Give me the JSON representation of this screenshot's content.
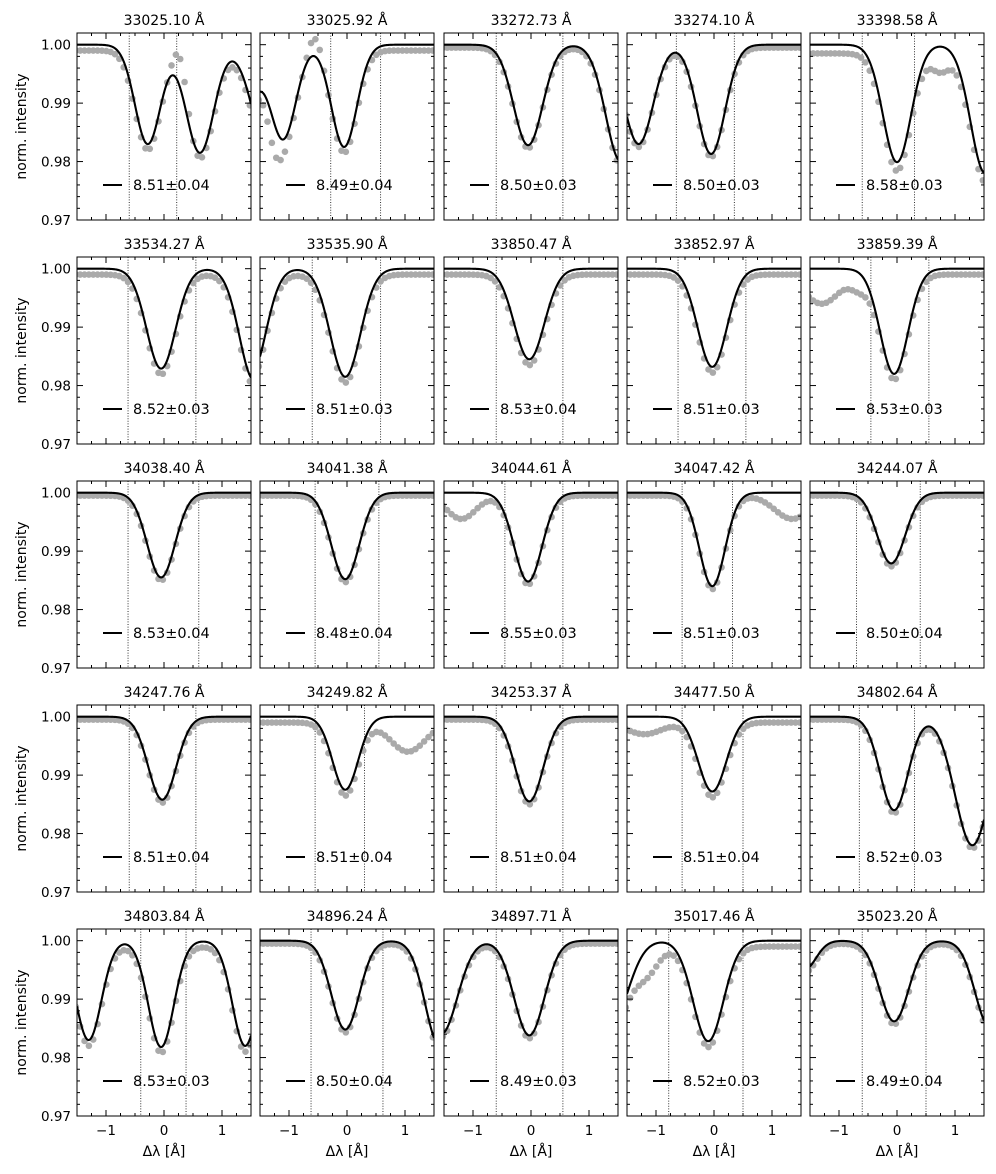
{
  "figure": {
    "ylabel": "norm. intensity",
    "xlabel": "Δλ [Å]",
    "xlim": [
      -1.5,
      1.5
    ],
    "ylim": [
      0.97,
      1.002
    ],
    "xticks_labeled": [
      -1,
      0,
      1
    ],
    "yticks_labeled": [
      0.97,
      0.98,
      0.99,
      1.0
    ],
    "ytick_labels": [
      "0.97",
      "0.98",
      "0.99",
      "1.00"
    ],
    "observed_color": "#aaaaaa",
    "fit_color": "#000000",
    "window_line_style": "dotted",
    "grid": false
  },
  "chart_data": [
    {
      "type": "line",
      "title": "33025.10 Å",
      "abundance": "8.51±0.04",
      "window": [
        -0.6,
        0.22
      ],
      "lines": [
        {
          "c": -0.28,
          "d": 0.017,
          "w": 0.22
        },
        {
          "c": 0.62,
          "d": 0.0185,
          "w": 0.24
        },
        {
          "c": 1.85,
          "d": 0.02,
          "w": 0.3
        }
      ],
      "obs_baseline": 0.999,
      "obs_bumps": [
        {
          "c": 0.28,
          "d": -0.006,
          "w": 0.12
        }
      ]
    },
    {
      "type": "line",
      "title": "33025.92 Å",
      "abundance": "8.49±0.04",
      "window": [
        -0.28,
        0.58
      ],
      "lines": [
        {
          "c": -1.1,
          "d": 0.016,
          "w": 0.22
        },
        {
          "c": -0.05,
          "d": 0.0175,
          "w": 0.22
        },
        {
          "c": -2.0,
          "d": 0.02,
          "w": 0.3
        }
      ],
      "obs_baseline": 0.999,
      "obs_bumps": [
        {
          "c": -1.25,
          "d": 0.004,
          "w": 0.12
        },
        {
          "c": -0.55,
          "d": -0.004,
          "w": 0.12
        }
      ]
    },
    {
      "type": "line",
      "title": "33272.73 Å",
      "abundance": "8.50±0.03",
      "window": [
        -0.6,
        0.55
      ],
      "lines": [
        {
          "c": -0.05,
          "d": 0.0172,
          "w": 0.25
        },
        {
          "c": 1.55,
          "d": 0.02,
          "w": 0.26
        }
      ],
      "obs_baseline": 0.9995,
      "obs_bumps": []
    },
    {
      "type": "line",
      "title": "33274.10 Å",
      "abundance": "8.50±0.03",
      "window": [
        -0.65,
        0.35
      ],
      "lines": [
        {
          "c": -1.3,
          "d": 0.017,
          "w": 0.25
        },
        {
          "c": -0.05,
          "d": 0.0187,
          "w": 0.24
        }
      ],
      "obs_baseline": 0.9995,
      "obs_bumps": []
    },
    {
      "type": "line",
      "title": "33398.58 Å",
      "abundance": "8.58±0.03",
      "window": [
        -0.6,
        0.3
      ],
      "lines": [
        {
          "c": 0.0,
          "d": 0.0201,
          "w": 0.24
        },
        {
          "c": 1.52,
          "d": 0.022,
          "w": 0.25
        }
      ],
      "obs_baseline": 0.9985,
      "obs_bumps": [
        {
          "c": 0.75,
          "d": 0.003,
          "w": 0.15
        }
      ]
    },
    {
      "type": "line",
      "title": "33534.27 Å",
      "abundance": "8.52±0.03",
      "window": [
        -0.62,
        0.55
      ],
      "lines": [
        {
          "c": -0.05,
          "d": 0.0171,
          "w": 0.25
        },
        {
          "c": 1.55,
          "d": 0.019,
          "w": 0.25
        }
      ],
      "obs_baseline": 0.999,
      "obs_bumps": []
    },
    {
      "type": "line",
      "title": "33535.90 Å",
      "abundance": "8.51±0.03",
      "window": [
        -0.6,
        0.58
      ],
      "lines": [
        {
          "c": -0.03,
          "d": 0.0185,
          "w": 0.26
        },
        {
          "c": -1.65,
          "d": 0.018,
          "w": 0.25
        }
      ],
      "obs_baseline": 0.999,
      "obs_bumps": []
    },
    {
      "type": "line",
      "title": "33850.47 Å",
      "abundance": "8.53±0.04",
      "window": [
        -0.6,
        0.55
      ],
      "lines": [
        {
          "c": -0.03,
          "d": 0.0155,
          "w": 0.26
        }
      ],
      "obs_baseline": 0.999,
      "obs_bumps": []
    },
    {
      "type": "line",
      "title": "33852.97 Å",
      "abundance": "8.51±0.03",
      "window": [
        -0.62,
        0.55
      ],
      "lines": [
        {
          "c": -0.03,
          "d": 0.0168,
          "w": 0.25
        }
      ],
      "obs_baseline": 0.999,
      "obs_bumps": []
    },
    {
      "type": "line",
      "title": "33859.39 Å",
      "abundance": "8.53±0.03",
      "window": [
        -0.45,
        0.55
      ],
      "lines": [
        {
          "c": -0.05,
          "d": 0.018,
          "w": 0.24
        }
      ],
      "obs_baseline": 0.999,
      "obs_bumps": [
        {
          "c": -1.3,
          "d": 0.005,
          "w": 0.3
        },
        {
          "c": -0.65,
          "d": 0.002,
          "w": 0.15
        }
      ]
    },
    {
      "type": "line",
      "title": "34038.40 Å",
      "abundance": "8.53±0.04",
      "window": [
        -0.62,
        0.6
      ],
      "lines": [
        {
          "c": -0.05,
          "d": 0.0145,
          "w": 0.24
        }
      ],
      "obs_baseline": 0.9995,
      "obs_bumps": []
    },
    {
      "type": "line",
      "title": "34041.38 Å",
      "abundance": "8.48±0.04",
      "window": [
        -0.55,
        0.55
      ],
      "lines": [
        {
          "c": -0.03,
          "d": 0.0148,
          "w": 0.24
        }
      ],
      "obs_baseline": 0.9995,
      "obs_bumps": []
    },
    {
      "type": "line",
      "title": "34044.61 Å",
      "abundance": "8.55±0.03",
      "window": [
        -0.45,
        0.55
      ],
      "lines": [
        {
          "c": -0.05,
          "d": 0.0152,
          "w": 0.24
        }
      ],
      "obs_baseline": 0.9995,
      "obs_bumps": [
        {
          "c": -1.2,
          "d": 0.004,
          "w": 0.25
        }
      ]
    },
    {
      "type": "line",
      "title": "34047.42 Å",
      "abundance": "8.51±0.03",
      "window": [
        -0.55,
        0.32
      ],
      "lines": [
        {
          "c": -0.03,
          "d": 0.016,
          "w": 0.22
        }
      ],
      "obs_baseline": 0.9995,
      "obs_bumps": [
        {
          "c": 1.35,
          "d": 0.004,
          "w": 0.3
        }
      ]
    },
    {
      "type": "line",
      "title": "34244.07 Å",
      "abundance": "8.50±0.04",
      "window": [
        -0.7,
        0.4
      ],
      "lines": [
        {
          "c": -0.1,
          "d": 0.0121,
          "w": 0.24
        }
      ],
      "obs_baseline": 0.9995,
      "obs_bumps": []
    },
    {
      "type": "line",
      "title": "34247.76 Å",
      "abundance": "8.51±0.04",
      "window": [
        -0.6,
        0.55
      ],
      "lines": [
        {
          "c": -0.03,
          "d": 0.0142,
          "w": 0.24
        }
      ],
      "obs_baseline": 0.9995,
      "obs_bumps": []
    },
    {
      "type": "line",
      "title": "34249.82 Å",
      "abundance": "8.51±0.04",
      "window": [
        -0.55,
        0.3
      ],
      "lines": [
        {
          "c": -0.03,
          "d": 0.0125,
          "w": 0.22
        }
      ],
      "obs_baseline": 0.999,
      "obs_bumps": [
        {
          "c": 1.05,
          "d": 0.005,
          "w": 0.3
        }
      ]
    },
    {
      "type": "line",
      "title": "34253.37 Å",
      "abundance": "8.51±0.04",
      "window": [
        -0.6,
        0.55
      ],
      "lines": [
        {
          "c": -0.03,
          "d": 0.0145,
          "w": 0.24
        }
      ],
      "obs_baseline": 0.9995,
      "obs_bumps": []
    },
    {
      "type": "line",
      "title": "34477.50 Å",
      "abundance": "8.51±0.04",
      "window": [
        -0.55,
        0.5
      ],
      "lines": [
        {
          "c": -0.03,
          "d": 0.0128,
          "w": 0.24
        }
      ],
      "obs_baseline": 0.999,
      "obs_bumps": [
        {
          "c": -1.2,
          "d": 0.002,
          "w": 0.3
        }
      ]
    },
    {
      "type": "line",
      "title": "34802.64 Å",
      "abundance": "8.52±0.03",
      "window": [
        -0.65,
        0.3
      ],
      "lines": [
        {
          "c": -0.05,
          "d": 0.016,
          "w": 0.24
        },
        {
          "c": 1.3,
          "d": 0.022,
          "w": 0.3
        }
      ],
      "obs_baseline": 0.9995,
      "obs_bumps": []
    },
    {
      "type": "line",
      "title": "34803.84 Å",
      "abundance": "8.53±0.03",
      "window": [
        -0.4,
        0.38
      ],
      "lines": [
        {
          "c": -1.3,
          "d": 0.017,
          "w": 0.22
        },
        {
          "c": -0.05,
          "d": 0.0182,
          "w": 0.22
        },
        {
          "c": 1.4,
          "d": 0.018,
          "w": 0.22
        }
      ],
      "obs_baseline": 0.999,
      "obs_bumps": []
    },
    {
      "type": "line",
      "title": "34896.24 Å",
      "abundance": "8.50±0.04",
      "window": [
        -0.62,
        0.62
      ],
      "lines": [
        {
          "c": -0.03,
          "d": 0.0152,
          "w": 0.24
        },
        {
          "c": 1.6,
          "d": 0.018,
          "w": 0.25
        }
      ],
      "obs_baseline": 0.9995,
      "obs_bumps": []
    },
    {
      "type": "line",
      "title": "34897.71 Å",
      "abundance": "8.49±0.03",
      "window": [
        -0.6,
        0.55
      ],
      "lines": [
        {
          "c": -1.55,
          "d": 0.016,
          "w": 0.28
        },
        {
          "c": -0.03,
          "d": 0.0162,
          "w": 0.26
        }
      ],
      "obs_baseline": 0.9995,
      "obs_bumps": []
    },
    {
      "type": "line",
      "title": "35017.46 Å",
      "abundance": "8.52±0.03",
      "window": [
        -0.78,
        0.5
      ],
      "lines": [
        {
          "c": -0.1,
          "d": 0.0172,
          "w": 0.26
        },
        {
          "c": -1.8,
          "d": 0.015,
          "w": 0.3
        }
      ],
      "obs_baseline": 0.999,
      "obs_bumps": [
        {
          "c": -1.15,
          "d": 0.004,
          "w": 0.2
        }
      ]
    },
    {
      "type": "line",
      "title": "35023.20 Å",
      "abundance": "8.49±0.04",
      "window": [
        -0.6,
        0.5
      ],
      "lines": [
        {
          "c": -0.05,
          "d": 0.0138,
          "w": 0.25
        },
        {
          "c": 1.6,
          "d": 0.0148,
          "w": 0.25
        },
        {
          "c": -1.6,
          "d": 0.005,
          "w": 0.2
        }
      ],
      "obs_baseline": 0.9995,
      "obs_bumps": []
    }
  ]
}
